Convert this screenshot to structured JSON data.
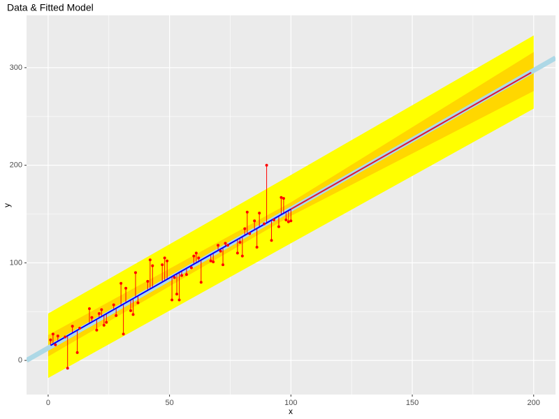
{
  "chart_data": {
    "type": "scatter",
    "title": "Data & Fitted Model",
    "x_label": "x",
    "y_label": "y",
    "xlim": [
      -8.9,
      209
    ],
    "ylim": [
      -35,
      353.6
    ],
    "xticks": [
      0,
      50,
      100,
      150,
      200
    ],
    "yticks": [
      0,
      100,
      200,
      300
    ],
    "x_minor_grid": [
      25,
      75,
      125,
      175
    ],
    "y_minor_grid": [
      50,
      150,
      250
    ],
    "grid": true,
    "true_line": {
      "x": [
        -8.9,
        209
      ],
      "values": [
        0,
        310
      ],
      "color": "#add8e6"
    },
    "prediction_band": {
      "x": [
        0,
        100,
        200
      ],
      "lower": [
        -18,
        120,
        258
      ],
      "upper": [
        48,
        190,
        333
      ],
      "color": "#ffff00"
    },
    "confidence_band": {
      "x": [
        0,
        100,
        200
      ],
      "lower": [
        4,
        148,
        276
      ],
      "upper": [
        26,
        162,
        316
      ],
      "color": "#ffd700"
    },
    "fitted": [
      {
        "x": [
          1,
          100
        ],
        "values": [
          15.4,
          155
        ],
        "color": "#0000ff"
      },
      {
        "x": [
          100,
          199
        ],
        "values": [
          155,
          295
        ],
        "color": "#dc143c"
      }
    ],
    "fit": {
      "x": [
        0,
        200
      ],
      "values": [
        14,
        296
      ]
    },
    "points": {
      "color": "#ff0000",
      "x": [
        1,
        2,
        3,
        4,
        7,
        8,
        10,
        12,
        13,
        17,
        18,
        20,
        21,
        22,
        23,
        24,
        27,
        28,
        30,
        31,
        32,
        34,
        35,
        36,
        37,
        41,
        42,
        43,
        47,
        48,
        49,
        51,
        52,
        53,
        54,
        55,
        57,
        59,
        60,
        61,
        62,
        63,
        67,
        68,
        70,
        71,
        72,
        73,
        74,
        78,
        79,
        80,
        81,
        82,
        83,
        85,
        86,
        87,
        89,
        90,
        92,
        93,
        95,
        96,
        97,
        98,
        99,
        100
      ],
      "values": [
        21,
        27,
        16,
        25,
        24,
        -8,
        35,
        8,
        33,
        53,
        44,
        31,
        48,
        52,
        36,
        39,
        57,
        46,
        79,
        27,
        74,
        51,
        47,
        90,
        59,
        81,
        103,
        97,
        98,
        105,
        102,
        62,
        85,
        68,
        62,
        87,
        88,
        95,
        107,
        110,
        105,
        80,
        102,
        101,
        118,
        112,
        98,
        120,
        118,
        110,
        121,
        107,
        135,
        152,
        130,
        143,
        116,
        151,
        140,
        200,
        123,
        144,
        137,
        167,
        166,
        144,
        142,
        143
      ]
    }
  }
}
